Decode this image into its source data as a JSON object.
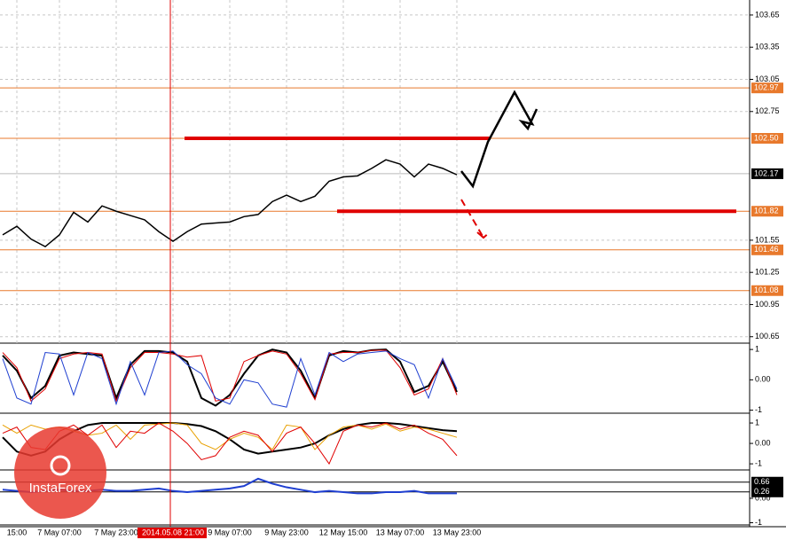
{
  "chart_data": [
    {
      "type": "line",
      "color": "#000000",
      "grid": true,
      "categories": [
        null,
        "15:00",
        null,
        null,
        "7 May 07:00",
        null,
        null,
        null,
        "7 May 23:00",
        null,
        null,
        null,
        "2014.05.08 21:00",
        null,
        null,
        null,
        "9 May 07:00",
        null,
        null,
        null,
        "9 May 23:00",
        null,
        null,
        null,
        "12 May 15:00",
        null,
        null,
        null,
        "13 May 07:00",
        null,
        null,
        null,
        "13 May 23:00"
      ],
      "values": [
        101.6,
        101.68,
        101.56,
        101.49,
        101.6,
        101.81,
        101.72,
        101.87,
        101.82,
        101.78,
        101.74,
        101.63,
        101.54,
        101.63,
        101.7,
        101.71,
        101.72,
        101.77,
        101.79,
        101.91,
        101.97,
        101.91,
        101.96,
        102.1,
        102.14,
        102.15,
        102.22,
        102.3,
        102.26,
        102.14,
        102.26,
        102.22,
        102.16
      ],
      "ylim": [
        100.59,
        103.79
      ],
      "yticks": [
        100.65,
        100.95,
        101.25,
        101.55,
        102.75,
        103.05,
        103.35,
        103.65
      ],
      "levels": [
        102.97,
        {
          "value": 102.5,
          "label": "102.50"
        },
        101.82,
        101.46,
        101.08
      ],
      "level_color": "#e8792c",
      "last_price": 102.17,
      "watermark": "InstaForex"
    },
    {
      "type": "line",
      "ylim": [
        -1.1,
        1.15
      ],
      "yticks": [
        1,
        {
          "value": 0,
          "label": "0.00"
        },
        -1
      ],
      "series": [
        {
          "color": "#000000",
          "values": [
            0.8,
            0.3,
            -0.6,
            -0.2,
            0.8,
            0.9,
            0.85,
            0.8,
            -0.6,
            0.5,
            0.95,
            0.95,
            0.9,
            0.6,
            -0.6,
            -0.85,
            -0.5,
            0.2,
            0.8,
            1.0,
            0.9,
            0.3,
            -0.6,
            0.8,
            0.95,
            0.9,
            0.98,
            1.0,
            0.6,
            -0.4,
            -0.2,
            0.6,
            -0.4
          ]
        },
        {
          "color": "#e00000",
          "values": [
            0.9,
            0.4,
            -0.7,
            -0.3,
            0.7,
            0.85,
            0.9,
            0.85,
            -0.7,
            0.4,
            0.9,
            0.9,
            0.85,
            0.75,
            0.8,
            -0.7,
            -0.6,
            0.6,
            0.8,
            0.95,
            0.85,
            0.2,
            -0.65,
            0.85,
            0.9,
            0.9,
            0.97,
            0.98,
            0.4,
            -0.5,
            -0.3,
            0.7,
            -0.5
          ]
        },
        {
          "color": "#1f3fd0",
          "values": [
            0.7,
            -0.6,
            -0.8,
            0.9,
            0.85,
            -0.5,
            0.9,
            0.7,
            -0.8,
            0.6,
            -0.5,
            0.9,
            0.95,
            0.5,
            0.2,
            -0.6,
            -0.8,
            0.0,
            -0.1,
            -0.8,
            -0.9,
            0.7,
            -0.5,
            0.9,
            0.6,
            0.85,
            0.9,
            0.95,
            0.7,
            0.5,
            -0.6,
            0.7,
            -0.3
          ]
        }
      ]
    },
    {
      "type": "line",
      "ylim": [
        -1.3,
        1.35
      ],
      "yticks": [
        1,
        {
          "value": 0,
          "label": "0.00"
        },
        -1
      ],
      "series": [
        {
          "color": "#000000",
          "values": [
            0.3,
            -0.4,
            -0.6,
            -0.4,
            0.2,
            0.6,
            0.9,
            1.0,
            1.0,
            1.0,
            1.0,
            1.0,
            1.0,
            0.95,
            0.85,
            0.6,
            0.2,
            -0.3,
            -0.5,
            -0.4,
            -0.3,
            -0.2,
            0.0,
            0.4,
            0.7,
            0.9,
            1.0,
            1.0,
            0.95,
            0.85,
            0.75,
            0.65,
            0.6
          ]
        },
        {
          "color": "#e8a000",
          "values": [
            0.9,
            0.5,
            0.9,
            0.7,
            0.8,
            0.6,
            0.4,
            0.5,
            0.9,
            0.2,
            0.9,
            0.95,
            1.0,
            0.9,
            0.0,
            -0.3,
            0.2,
            0.5,
            0.3,
            -0.3,
            0.9,
            0.8,
            -0.3,
            0.4,
            0.8,
            0.9,
            0.7,
            0.95,
            0.6,
            0.8,
            0.7,
            0.5,
            0.3
          ]
        },
        {
          "color": "#e00000",
          "values": [
            0.5,
            0.8,
            -0.2,
            -0.3,
            0.6,
            0.9,
            0.4,
            0.9,
            -0.2,
            0.6,
            0.5,
            1.0,
            0.6,
            0.0,
            -0.8,
            -0.6,
            0.3,
            0.6,
            0.4,
            -0.4,
            0.5,
            0.8,
            0.0,
            -1.0,
            0.6,
            0.9,
            0.8,
            1.0,
            0.7,
            0.9,
            0.5,
            0.2,
            -0.6
          ]
        }
      ]
    },
    {
      "type": "line",
      "ylim": [
        -1.09,
        1.05
      ],
      "yticks": [
        {
          "value": 0,
          "label": "0.00"
        },
        -1
      ],
      "levels": [
        0.66,
        0.26
      ],
      "series": [
        {
          "color": "#1f3fd0",
          "values": [
            0.35,
            0.3,
            0.25,
            0.3,
            0.35,
            0.3,
            0.3,
            0.35,
            0.3,
            0.3,
            0.35,
            0.4,
            0.3,
            0.25,
            0.3,
            0.35,
            0.4,
            0.5,
            0.8,
            0.6,
            0.45,
            0.35,
            0.25,
            0.3,
            0.25,
            0.2,
            0.2,
            0.25,
            0.25,
            0.3,
            0.2,
            0.2,
            0.2
          ]
        }
      ]
    }
  ]
}
